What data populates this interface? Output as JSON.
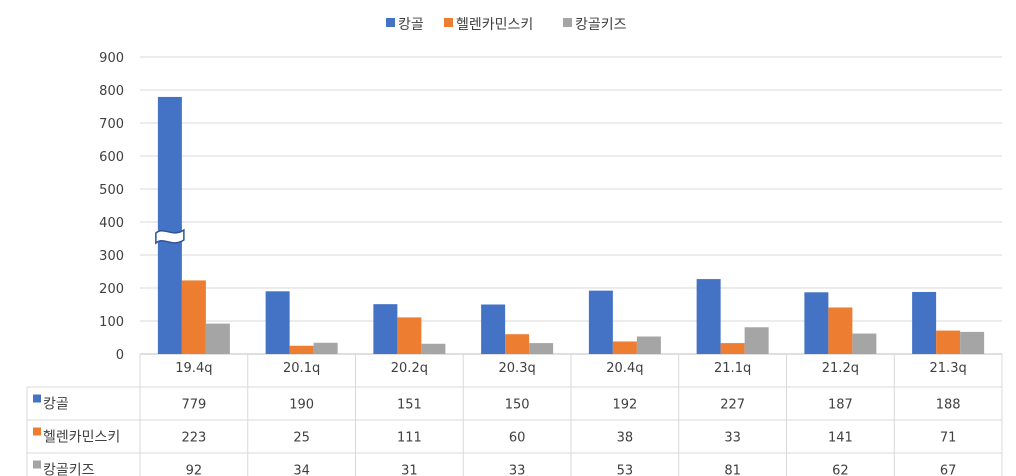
{
  "chart_data": {
    "type": "bar",
    "title": "",
    "xlabel": "",
    "ylabel": "",
    "ylim": [
      0,
      900
    ],
    "yticks": [
      0,
      100,
      200,
      300,
      400,
      500,
      600,
      700,
      800,
      900
    ],
    "categories": [
      "19.4q",
      "20.1q",
      "20.2q",
      "20.3q",
      "20.4q",
      "21.1q",
      "21.2q",
      "21.3q"
    ],
    "series": [
      {
        "name": "캉골",
        "color": "#4472C4",
        "values": [
          779,
          190,
          151,
          150,
          192,
          227,
          187,
          188
        ]
      },
      {
        "name": "헬렌카민스키",
        "color": "#ED7D31",
        "values": [
          223,
          25,
          111,
          60,
          38,
          33,
          141,
          71
        ]
      },
      {
        "name": "캉골키즈",
        "color": "#A5A5A5",
        "values": [
          92,
          34,
          31,
          33,
          53,
          81,
          62,
          67
        ]
      }
    ],
    "legend_position": "top-center",
    "grid": true,
    "axis_break": {
      "series": "캉골",
      "category": "19.4q"
    },
    "data_table": true
  }
}
